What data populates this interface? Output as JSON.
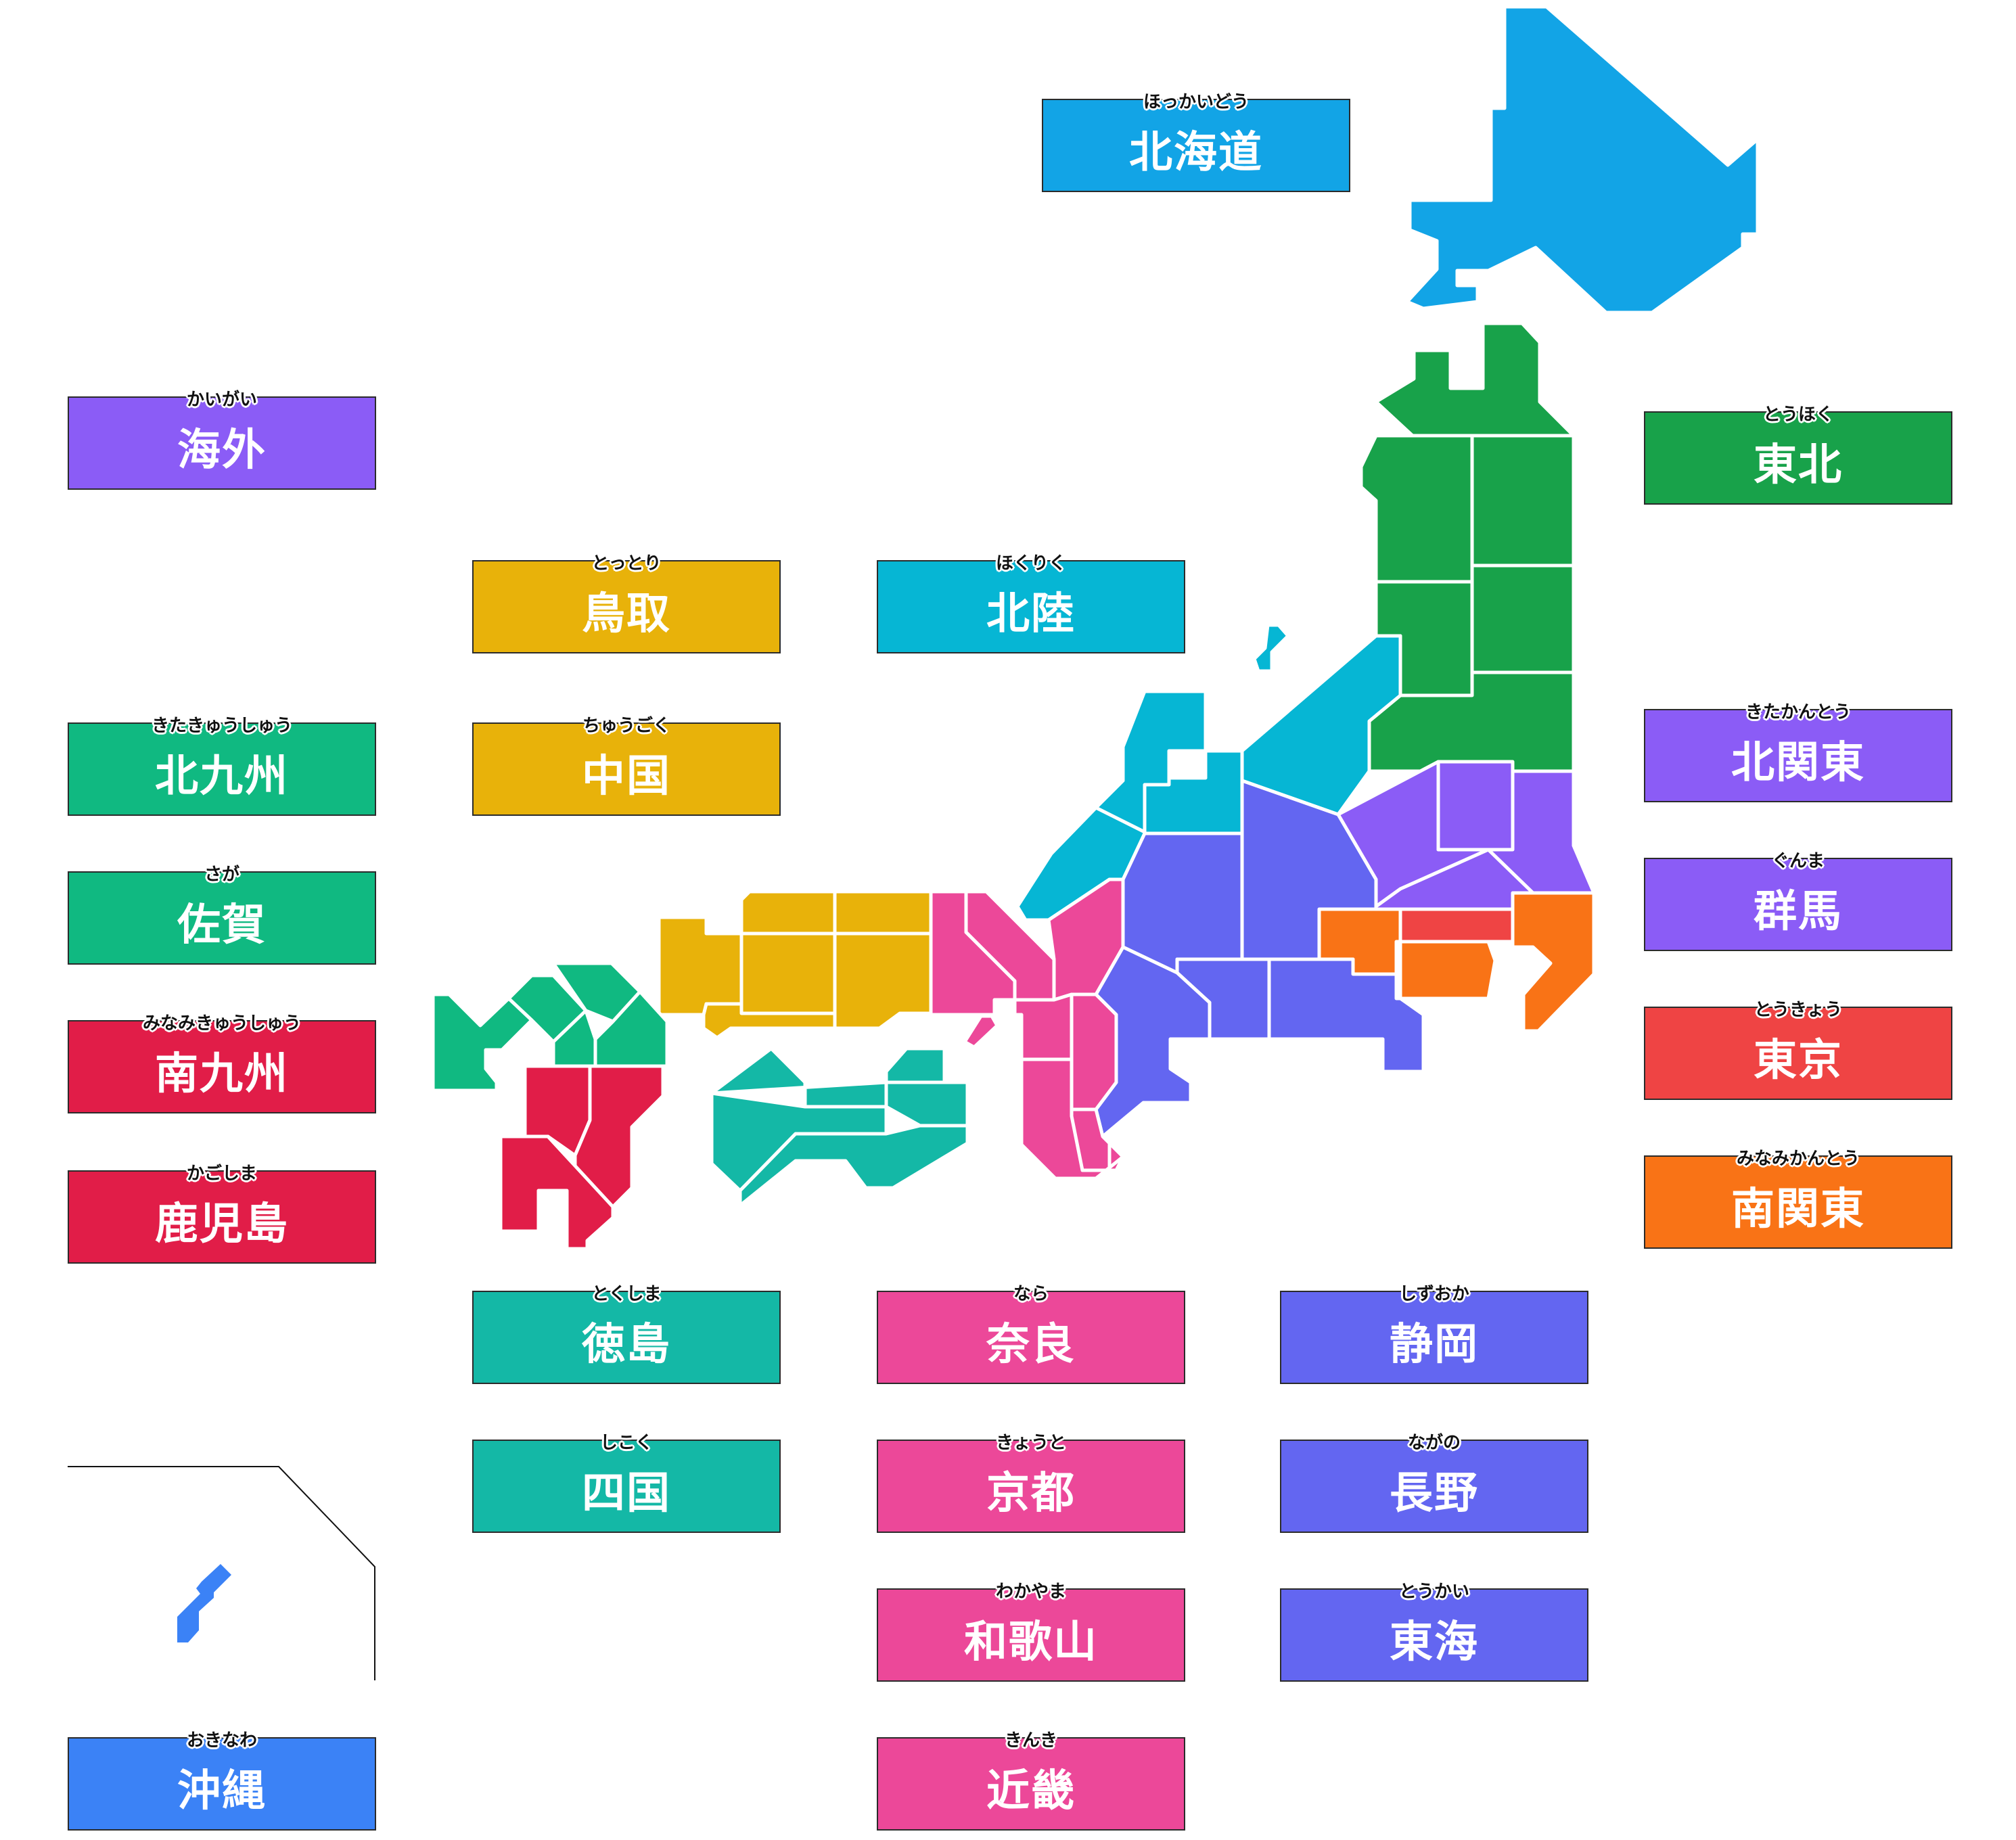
{
  "colors": {
    "hokkaido": "#12a4e6",
    "tohoku": "#18a24a",
    "hokuriku": "#06b6d4",
    "kanto_north": "#8b5cf6",
    "kanto_south": "#f97316",
    "tokyo": "#ef4444",
    "chubu": "#6366f1",
    "kinki": "#ec4899",
    "chugoku": "#e8b20a",
    "shikoku": "#14b8a6",
    "kyushu_north": "#10b981",
    "kyushu_south": "#e11d48",
    "okinawa": "#3b82f6",
    "overseas": "#8b5cf6",
    "inset_border": "#111111"
  },
  "buttons": {
    "hokkaido": {
      "kanji": "北海道",
      "kana": "ほっかいどう",
      "color": "#12a4e6"
    },
    "tohoku": {
      "kanji": "東北",
      "kana": "とうほく",
      "color": "#18a24a"
    },
    "kaigai": {
      "kanji": "海外",
      "kana": "かいがい",
      "color": "#8b5cf6"
    },
    "tottori": {
      "kanji": "鳥取",
      "kana": "とっとり",
      "color": "#e8b20a"
    },
    "hokuriku": {
      "kanji": "北陸",
      "kana": "ほくりく",
      "color": "#06b6d4"
    },
    "kitakyushu": {
      "kanji": "北九州",
      "kana": "きたきゅうしゅう",
      "color": "#10b981"
    },
    "chugoku": {
      "kanji": "中国",
      "kana": "ちゅうごく",
      "color": "#e8b20a"
    },
    "kitakanto": {
      "kanji": "北関東",
      "kana": "きたかんとう",
      "color": "#8b5cf6"
    },
    "saga": {
      "kanji": "佐賀",
      "kana": "さが",
      "color": "#10b981"
    },
    "gunma": {
      "kanji": "群馬",
      "kana": "ぐんま",
      "color": "#8b5cf6"
    },
    "minamikyushu": {
      "kanji": "南九州",
      "kana": "みなみきゅうしゅう",
      "color": "#e11d48"
    },
    "tokyo": {
      "kanji": "東京",
      "kana": "とうきょう",
      "color": "#ef4444"
    },
    "kagoshima": {
      "kanji": "鹿児島",
      "kana": "かごしま",
      "color": "#e11d48"
    },
    "minamikanto": {
      "kanji": "南関東",
      "kana": "みなみかんとう",
      "color": "#f97316"
    },
    "tokushima": {
      "kanji": "徳島",
      "kana": "とくしま",
      "color": "#14b8a6"
    },
    "nara": {
      "kanji": "奈良",
      "kana": "なら",
      "color": "#ec4899"
    },
    "shizuoka": {
      "kanji": "静岡",
      "kana": "しずおか",
      "color": "#6366f1"
    },
    "shikoku": {
      "kanji": "四国",
      "kana": "しこく",
      "color": "#14b8a6"
    },
    "kyoto": {
      "kanji": "京都",
      "kana": "きょうと",
      "color": "#ec4899"
    },
    "nagano": {
      "kanji": "長野",
      "kana": "ながの",
      "color": "#6366f1"
    },
    "wakayama": {
      "kanji": "和歌山",
      "kana": "わかやま",
      "color": "#ec4899"
    },
    "tokai": {
      "kanji": "東海",
      "kana": "とうかい",
      "color": "#6366f1"
    },
    "okinawa": {
      "kanji": "沖縄",
      "kana": "おきなわ",
      "color": "#3b82f6"
    },
    "kinki": {
      "kanji": "近畿",
      "kana": "きんき",
      "color": "#ec4899"
    }
  }
}
